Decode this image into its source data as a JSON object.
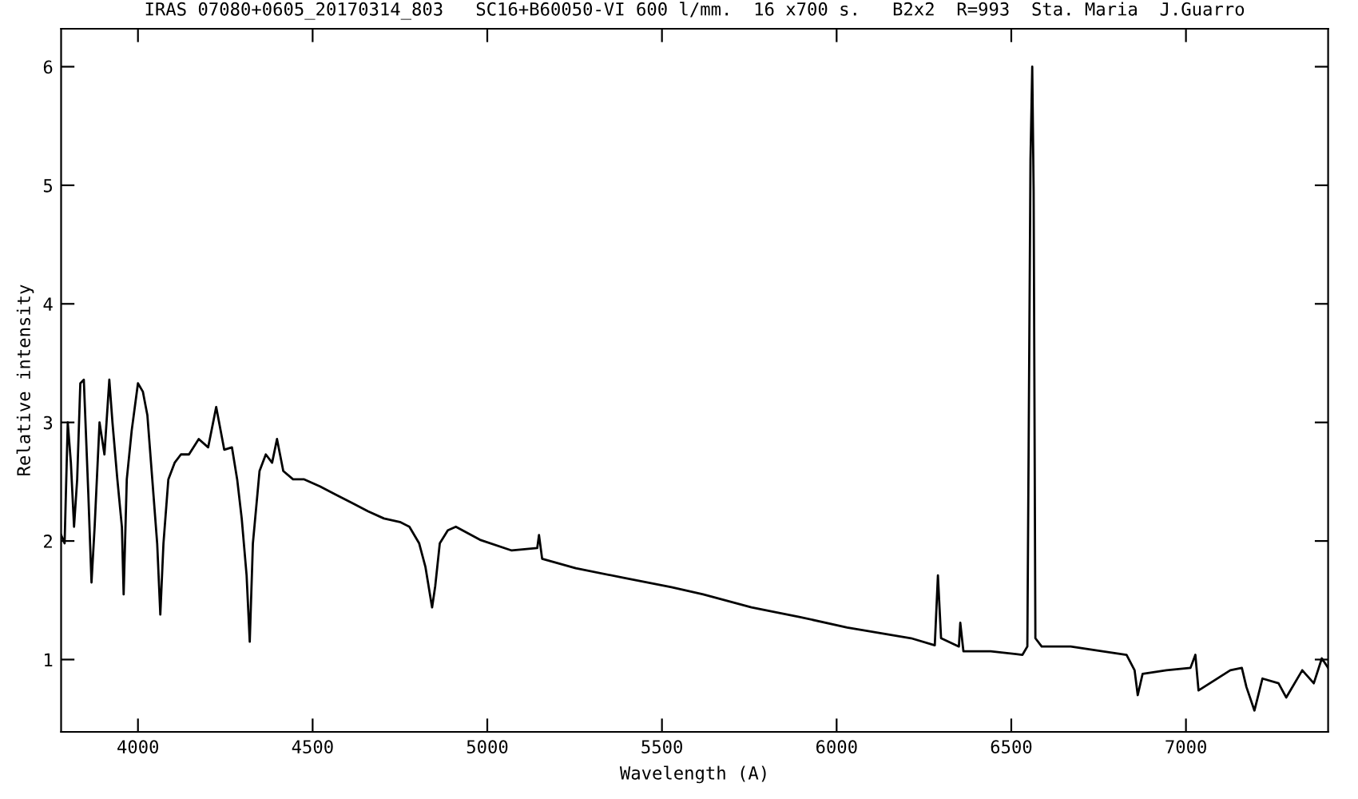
{
  "chart_data": {
    "type": "line",
    "title": "IRAS 07080+0605_20170314_803   SC16+B60050-VI 600 l/mm.  16 x700 s.   B2x2  R=993  Sta. Maria  J.Guarro",
    "xlabel": "Wavelength (A)",
    "ylabel": "Relative intensity",
    "x": [
      3780,
      3790,
      3799,
      3808,
      3817,
      3826,
      3835,
      3845,
      3858,
      3867,
      3876,
      3890,
      3904,
      3918,
      3927,
      3941,
      3954,
      3959,
      3968,
      3982,
      4000,
      4014,
      4027,
      4041,
      4055,
      4064,
      4073,
      4087,
      4105,
      4123,
      4146,
      4174,
      4201,
      4224,
      4247,
      4269,
      4284,
      4297,
      4311,
      4320,
      4329,
      4348,
      4366,
      4384,
      4398,
      4416,
      4444,
      4476,
      4521,
      4567,
      4613,
      4659,
      4704,
      4750,
      4777,
      4805,
      4823,
      4842,
      4851,
      4864,
      4887,
      4910,
      4979,
      5070,
      5143,
      5148,
      5157,
      5253,
      5390,
      5527,
      5618,
      5756,
      5893,
      6030,
      6213,
      6281,
      6290,
      6299,
      6350,
      6354,
      6363,
      6441,
      6532,
      6546,
      6555,
      6560,
      6564,
      6569,
      6587,
      6670,
      6761,
      6830,
      6853,
      6862,
      6876,
      6944,
      7013,
      7027,
      7036,
      7127,
      7160,
      7173,
      7196,
      7219,
      7265,
      7287,
      7333,
      7366,
      7389,
      7407
    ],
    "series": [
      {
        "color": "#000000",
        "values": [
          2.05,
          1.98,
          3.0,
          2.66,
          2.12,
          2.52,
          3.33,
          3.36,
          2.39,
          1.65,
          2.12,
          3.0,
          2.73,
          3.36,
          3.0,
          2.52,
          2.12,
          1.55,
          2.52,
          2.93,
          3.33,
          3.26,
          3.06,
          2.52,
          1.98,
          1.38,
          1.98,
          2.52,
          2.66,
          2.73,
          2.73,
          2.86,
          2.79,
          3.13,
          2.77,
          2.79,
          2.52,
          2.19,
          1.71,
          1.15,
          1.98,
          2.59,
          2.73,
          2.66,
          2.86,
          2.59,
          2.52,
          2.52,
          2.46,
          2.39,
          2.32,
          2.25,
          2.19,
          2.16,
          2.12,
          1.98,
          1.78,
          1.44,
          1.62,
          1.98,
          2.09,
          2.12,
          2.01,
          1.92,
          1.94,
          2.05,
          1.85,
          1.77,
          1.69,
          1.61,
          1.55,
          1.44,
          1.36,
          1.27,
          1.18,
          1.12,
          1.71,
          1.18,
          1.11,
          1.31,
          1.07,
          1.07,
          1.04,
          1.11,
          5.22,
          6.0,
          4.95,
          1.18,
          1.11,
          1.11,
          1.07,
          1.04,
          0.91,
          0.7,
          0.88,
          0.91,
          0.93,
          1.04,
          0.74,
          0.91,
          0.93,
          0.77,
          0.57,
          0.84,
          0.8,
          0.68,
          0.91,
          0.8,
          1.01,
          0.93
        ]
      }
    ],
    "xlim": [
      3780,
      7407
    ],
    "ylim": [
      0.39,
      6.32
    ],
    "xticks": [
      4000,
      4500,
      5000,
      5500,
      6000,
      6500,
      7000
    ],
    "yticks": [
      1,
      2,
      3,
      4,
      5,
      6
    ],
    "grid": false,
    "marker": "none",
    "line_style": "solid"
  }
}
